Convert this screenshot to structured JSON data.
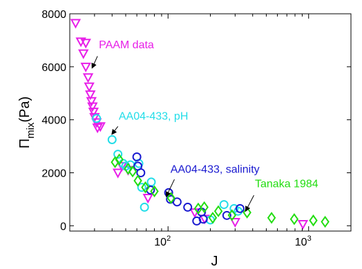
{
  "colors": {
    "paam": "#e81ee8",
    "ph": "#22dde8",
    "salinity": "#1a1ad0",
    "tanaka": "#22dd11",
    "axis": "#000000",
    "arrow": "#000000"
  },
  "chart_data": {
    "type": "scatter",
    "xscale": "log",
    "xlim": [
      20,
      2000
    ],
    "ylim": [
      -200,
      8000
    ],
    "xlabel": "J",
    "ylabel_main": "Π",
    "ylabel_sub": "mix",
    "ylabel_unit": "(Pa)",
    "x_tick_values": [
      100,
      1000
    ],
    "x_tick_labels": [
      {
        "base": "10",
        "exp": "2"
      },
      {
        "base": "10",
        "exp": "3"
      }
    ],
    "y_ticks": [
      0,
      2000,
      4000,
      6000,
      8000
    ],
    "grid": false,
    "series": [
      {
        "name": "PAAM data",
        "marker": "triangle-down",
        "color_key": "paam",
        "points": [
          [
            22,
            7650
          ],
          [
            24,
            6950
          ],
          [
            26,
            6900
          ],
          [
            25,
            6500
          ],
          [
            26,
            6000
          ],
          [
            27,
            5600
          ],
          [
            27.5,
            5250
          ],
          [
            28,
            4950
          ],
          [
            28.5,
            4700
          ],
          [
            29,
            4500
          ],
          [
            29.5,
            4300
          ],
          [
            30,
            4100
          ],
          [
            31,
            3900
          ],
          [
            31.5,
            3700
          ],
          [
            33,
            3750
          ],
          [
            44,
            2000
          ],
          [
            47,
            2250
          ],
          [
            52,
            2100
          ],
          [
            72,
            1050
          ],
          [
            155,
            500
          ],
          [
            182,
            260
          ],
          [
            300,
            140
          ],
          [
            910,
            60
          ]
        ]
      },
      {
        "name": "AA04-433, pH",
        "marker": "circle",
        "color_key": "ph",
        "points": [
          [
            31,
            4050
          ],
          [
            40,
            3250
          ],
          [
            44,
            2700
          ],
          [
            48,
            2350
          ],
          [
            50,
            2250
          ],
          [
            54,
            2300
          ],
          [
            62,
            2350
          ],
          [
            65,
            1450
          ],
          [
            68,
            700
          ],
          [
            76,
            1650
          ],
          [
            200,
            220
          ],
          [
            250,
            800
          ],
          [
            295,
            650
          ],
          [
            315,
            550
          ]
        ]
      },
      {
        "name": "AA04-433, salinity",
        "marker": "circle",
        "color_key": "salinity",
        "points": [
          [
            60,
            2600
          ],
          [
            61,
            2250
          ],
          [
            64,
            2000
          ],
          [
            75,
            1350
          ],
          [
            101,
            1250
          ],
          [
            104,
            1000
          ],
          [
            116,
            900
          ],
          [
            138,
            700
          ],
          [
            160,
            180
          ],
          [
            173,
            520
          ],
          [
            178,
            250
          ],
          [
            262,
            390
          ],
          [
            325,
            650
          ]
        ]
      },
      {
        "name": "Tanaka 1984",
        "marker": "diamond",
        "color_key": "tanaka",
        "points": [
          [
            42,
            2400
          ],
          [
            45,
            2500
          ],
          [
            52,
            2150
          ],
          [
            56,
            2050
          ],
          [
            61,
            1700
          ],
          [
            69,
            1450
          ],
          [
            80,
            1300
          ],
          [
            105,
            1050
          ],
          [
            164,
            650
          ],
          [
            181,
            700
          ],
          [
            208,
            300
          ],
          [
            228,
            550
          ],
          [
            285,
            400
          ],
          [
            365,
            500
          ],
          [
            545,
            300
          ],
          [
            790,
            250
          ],
          [
            1080,
            200
          ],
          [
            1310,
            150
          ]
        ]
      }
    ],
    "annotations": [
      {
        "text": "PAAM data",
        "color_key": "paam",
        "pos": [
          32.2,
          6700
        ],
        "arrow_from": [
          31.5,
          6400
        ],
        "arrow_to": [
          28.8,
          5950
        ]
      },
      {
        "text": "AA04-433, pH",
        "color_key": "ph",
        "pos": [
          44.6,
          4000
        ],
        "arrow_from": [
          44,
          3750
        ],
        "arrow_to": [
          39.8,
          3450
        ]
      },
      {
        "text": "AA04-433, salinity",
        "color_key": "salinity",
        "pos": [
          104,
          2000
        ],
        "arrow_from": [
          111,
          1750
        ],
        "arrow_to": [
          97,
          1100
        ]
      },
      {
        "text": "Tanaka 1984",
        "color_key": "tanaka",
        "pos": [
          415,
          1450
        ],
        "arrow_from": [
          408,
          1150
        ],
        "arrow_to": [
          356,
          550
        ]
      }
    ]
  }
}
